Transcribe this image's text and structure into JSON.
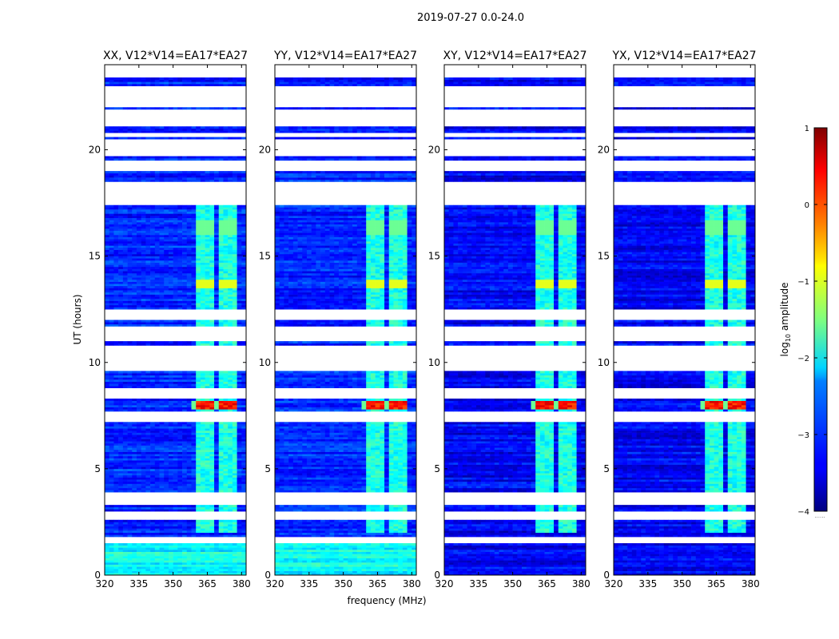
{
  "suptitle": "2019-07-27 0.0-24.0",
  "xlabel": "frequency (MHz)",
  "ylabel": "UT (hours)",
  "colorbar": {
    "label_prefix": "log",
    "label_sub": "10",
    "label_suffix": " amplitude",
    "min": -4,
    "max": 1,
    "ticks": [
      -4,
      -3,
      -2,
      -1,
      0,
      1
    ],
    "tick_labels": [
      "−4",
      "−3",
      "−2",
      "−1",
      "0",
      "1"
    ],
    "colormap": "jet",
    "under_marker": "......"
  },
  "chart_data": [
    {
      "type": "heatmap",
      "title": "XX, V12*V14=EA17*EA27",
      "xlim": [
        320,
        382
      ],
      "ylim": [
        0,
        24
      ],
      "xticks": [
        320,
        335,
        350,
        365,
        380
      ],
      "yticks": [
        0,
        5,
        10,
        15,
        20
      ],
      "rfi_band_MHz": [
        360.5,
        378
      ],
      "rfi_sub_bands_MHz": [
        [
          360.5,
          364
        ],
        [
          365,
          368.5
        ],
        [
          369.5,
          373.5
        ],
        [
          374.5,
          378
        ]
      ],
      "rfi_peak_hours": [
        7.8,
        8.2
      ],
      "rfi_peak_log_amplitude": 0.3,
      "background_log_amplitude": -3.2
    },
    {
      "type": "heatmap",
      "title": "YY, V12*V14=EA17*EA27",
      "xlim": [
        320,
        382
      ],
      "ylim": [
        0,
        24
      ],
      "xticks": [
        320,
        335,
        350,
        365,
        380
      ],
      "yticks": [
        0,
        5,
        10,
        15,
        20
      ],
      "rfi_band_MHz": [
        360.5,
        378
      ],
      "rfi_sub_bands_MHz": [
        [
          360.5,
          364
        ],
        [
          365,
          368.5
        ],
        [
          369.5,
          373.5
        ],
        [
          374.5,
          378
        ]
      ],
      "rfi_peak_hours": [
        7.8,
        8.2
      ],
      "rfi_peak_log_amplitude": 0.3,
      "background_log_amplitude": -3.2
    },
    {
      "type": "heatmap",
      "title": "XY, V12*V14=EA17*EA27",
      "xlim": [
        320,
        382
      ],
      "ylim": [
        0,
        24
      ],
      "xticks": [
        320,
        335,
        350,
        365,
        380
      ],
      "yticks": [
        0,
        5,
        10,
        15,
        20
      ],
      "rfi_band_MHz": [
        360.5,
        378
      ],
      "rfi_sub_bands_MHz": [
        [
          360.5,
          364
        ],
        [
          365,
          368.5
        ],
        [
          369.5,
          373.5
        ],
        [
          374.5,
          378
        ]
      ],
      "rfi_peak_hours": [
        7.8,
        8.2
      ],
      "rfi_peak_log_amplitude": 0.3,
      "background_log_amplitude": -3.4
    },
    {
      "type": "heatmap",
      "title": "YX, V12*V14=EA17*EA27",
      "xlim": [
        320,
        382
      ],
      "ylim": [
        0,
        24
      ],
      "xticks": [
        320,
        335,
        350,
        365,
        380
      ],
      "yticks": [
        0,
        5,
        10,
        15,
        20
      ],
      "rfi_band_MHz": [
        360.5,
        378
      ],
      "rfi_sub_bands_MHz": [
        [
          360.5,
          364
        ],
        [
          365,
          368.5
        ],
        [
          369.5,
          373.5
        ],
        [
          374.5,
          378
        ]
      ],
      "rfi_peak_hours": [
        7.8,
        8.2
      ],
      "rfi_peak_log_amplitude": 0.3,
      "background_log_amplitude": -3.4
    }
  ],
  "flagged_hours": [
    [
      23.4,
      24.0
    ],
    [
      22.05,
      23.0
    ],
    [
      21.15,
      21.9
    ],
    [
      20.6,
      20.8
    ],
    [
      19.75,
      20.5
    ],
    [
      19.0,
      19.5
    ],
    [
      17.4,
      18.5
    ],
    [
      12.0,
      12.5
    ],
    [
      11.0,
      11.7
    ],
    [
      9.6,
      10.8
    ],
    [
      8.3,
      8.8
    ],
    [
      7.25,
      7.7
    ],
    [
      3.35,
      3.9
    ],
    [
      2.6,
      3.0
    ],
    [
      1.55,
      1.85
    ]
  ],
  "masked_hours_black": [
    [
      23.55,
      23.95
    ],
    [
      22.25,
      22.9
    ],
    [
      21.3,
      21.85
    ],
    [
      19.9,
      20.45
    ]
  ]
}
